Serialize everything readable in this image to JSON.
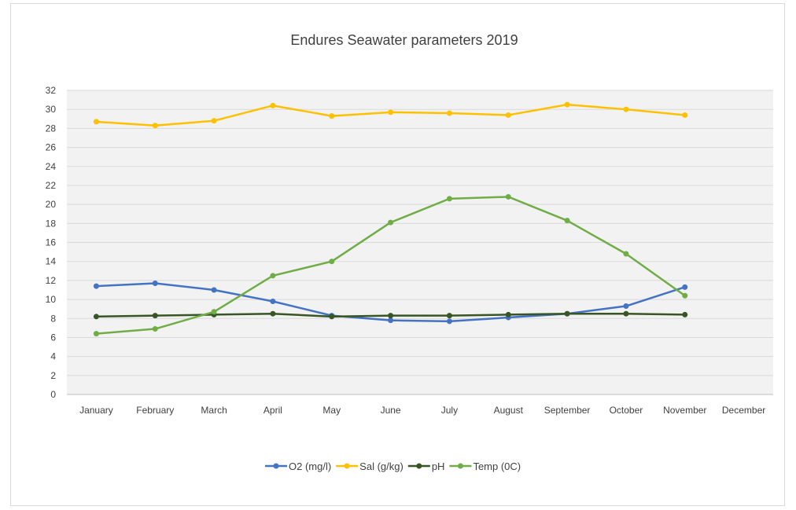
{
  "chart_data": {
    "type": "line",
    "title": "Endures Seawater parameters 2019",
    "xlabel": "",
    "ylabel": "",
    "ylim": [
      0,
      32
    ],
    "ytick_step": 2,
    "grid": true,
    "legend_position": "bottom",
    "categories": [
      "January",
      "February",
      "March",
      "April",
      "May",
      "June",
      "July",
      "August",
      "September",
      "October",
      "November",
      "December"
    ],
    "series": [
      {
        "name": "O2 (mg/l)",
        "color": "#4472c4",
        "values": [
          11.4,
          11.7,
          11.0,
          9.8,
          8.3,
          7.8,
          7.7,
          8.1,
          8.5,
          9.3,
          11.3,
          null
        ]
      },
      {
        "name": "Sal (g/kg)",
        "color": "#ffc000",
        "values": [
          28.7,
          28.3,
          28.8,
          30.4,
          29.3,
          29.7,
          29.6,
          29.4,
          30.5,
          30.0,
          29.4,
          null
        ]
      },
      {
        "name": "pH",
        "color": "#375623",
        "values": [
          8.2,
          8.3,
          8.4,
          8.5,
          8.2,
          8.3,
          8.3,
          8.4,
          8.5,
          8.5,
          8.4,
          null
        ]
      },
      {
        "name": "Temp (0C)",
        "color": "#70ad47",
        "values": [
          6.4,
          6.9,
          8.7,
          12.5,
          14.0,
          18.1,
          20.6,
          20.8,
          18.3,
          14.8,
          10.4,
          null
        ]
      }
    ]
  }
}
